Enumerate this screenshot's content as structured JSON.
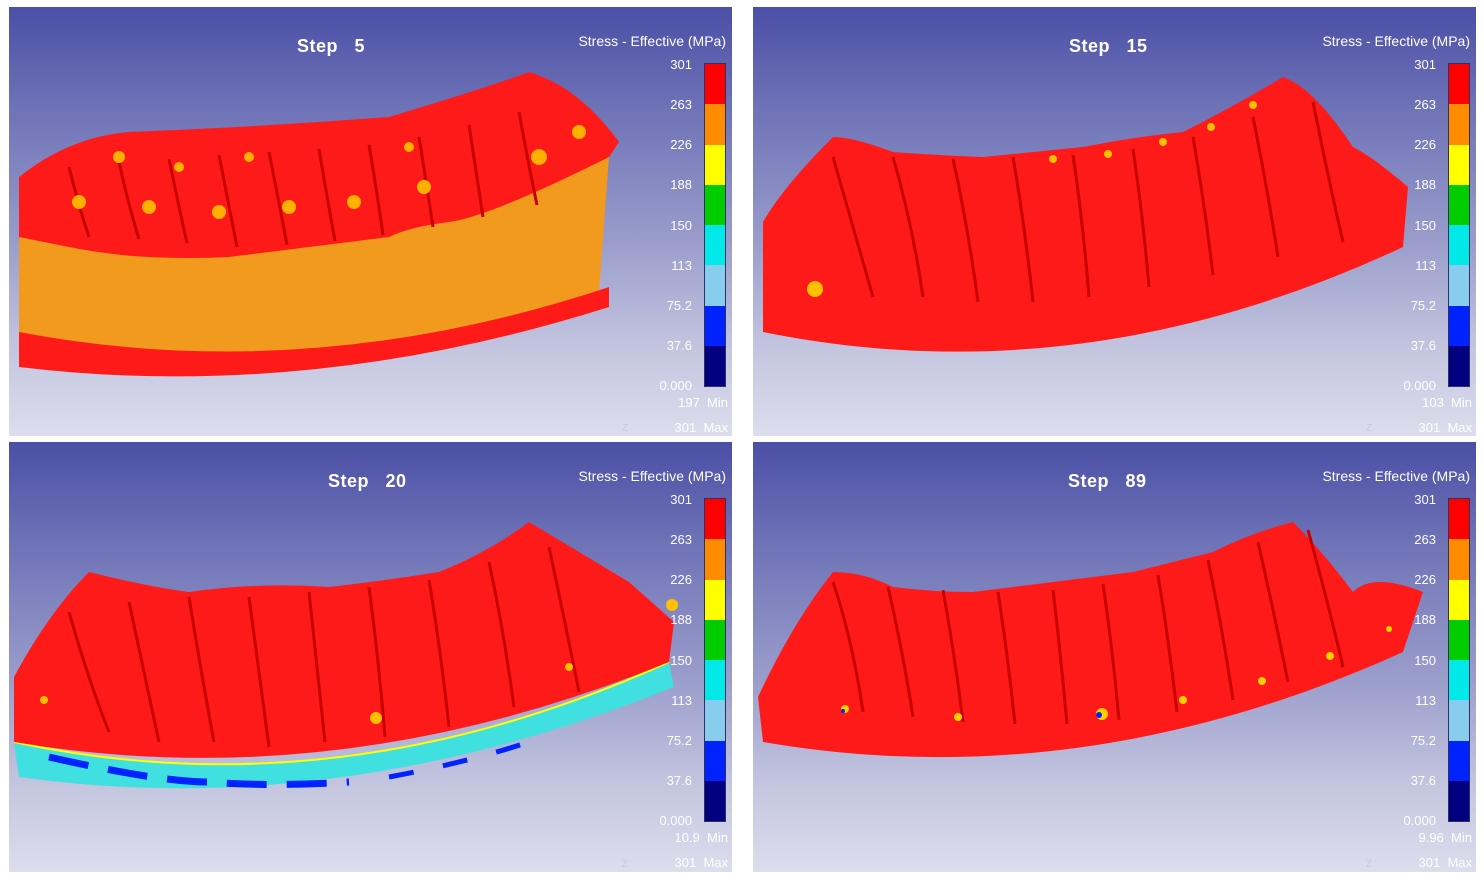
{
  "legend": {
    "title": "Stress - Effective (MPa)",
    "ticks": [
      "301",
      "263",
      "226",
      "188",
      "150",
      "113",
      "75.2",
      "37.6",
      "0.000"
    ],
    "colors": [
      "#ff0000",
      "#ff8c00",
      "#ffff00",
      "#00cc00",
      "#00e8e8",
      "#88ccee",
      "#0022ff",
      "#000080"
    ],
    "min_label": "Min",
    "max_label": "Max"
  },
  "panels": [
    {
      "step_label": "Step",
      "step_value": "5",
      "min_value": "197",
      "max_value": "301",
      "corner": "Z"
    },
    {
      "step_label": "Step",
      "step_value": "15",
      "min_value": "103",
      "max_value": "301",
      "corner": "Z"
    },
    {
      "step_label": "Step",
      "step_value": "20",
      "min_value": "10.9",
      "max_value": "301",
      "corner": "Z"
    },
    {
      "step_label": "Step",
      "step_value": "89",
      "min_value": "9.96",
      "max_value": "301",
      "corner": "Z"
    }
  ]
}
